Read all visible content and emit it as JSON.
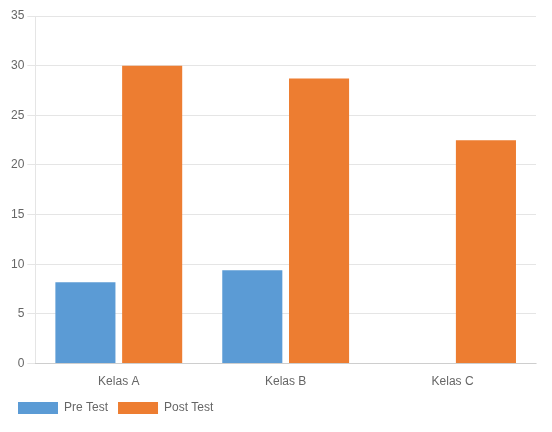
{
  "chart_data": {
    "type": "bar",
    "categories": [
      "Kelas A",
      "Kelas B",
      "Kelas C"
    ],
    "series": [
      {
        "name": "Pre Test",
        "color": "#5B9BD5",
        "values": [
          8.2,
          9.4,
          0
        ]
      },
      {
        "name": "Post Test",
        "color": "#ED7D31",
        "values": [
          30.0,
          28.7,
          22.5
        ]
      }
    ],
    "ylim": [
      0,
      35
    ],
    "yticks": [
      0,
      5,
      10,
      15,
      20,
      25,
      30,
      35
    ],
    "grid": true,
    "legend": "bottom"
  }
}
